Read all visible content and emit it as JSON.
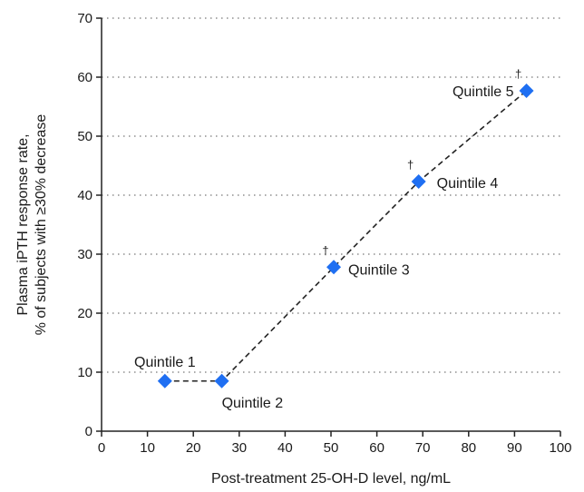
{
  "chart_data": {
    "type": "scatter",
    "title": "",
    "xlabel": "Post-treatment 25-OH-D level, ng/mL",
    "ylabel_lines": [
      "Plasma iPTH response rate,",
      "% of subjects with ≥30% decrease"
    ],
    "xlim": [
      0,
      100
    ],
    "ylim": [
      0,
      70
    ],
    "x_ticks": [
      0,
      10,
      20,
      30,
      40,
      50,
      60,
      70,
      80,
      90,
      100
    ],
    "y_ticks": [
      0,
      10,
      20,
      30,
      40,
      50,
      60,
      70
    ],
    "grid": "horizontal dotted",
    "line_style": "dashed",
    "marker": "diamond",
    "colors": {
      "marker": "#1f6ff2",
      "line": "#222222",
      "grid": "#777777",
      "axis": "#222222"
    },
    "series": [
      {
        "points": [
          {
            "label": "Quintile 1",
            "x": 13.8,
            "y": 8.5,
            "dagger": ""
          },
          {
            "label": "Quintile 2",
            "x": 26.2,
            "y": 8.5,
            "dagger": ""
          },
          {
            "label": "Quintile 3",
            "x": 50.6,
            "y": 27.8,
            "dagger": "†"
          },
          {
            "label": "Quintile 4",
            "x": 69.1,
            "y": 42.3,
            "dagger": "†"
          },
          {
            "label": "Quintile 5",
            "x": 92.6,
            "y": 57.7,
            "dagger": "†"
          }
        ]
      }
    ]
  }
}
